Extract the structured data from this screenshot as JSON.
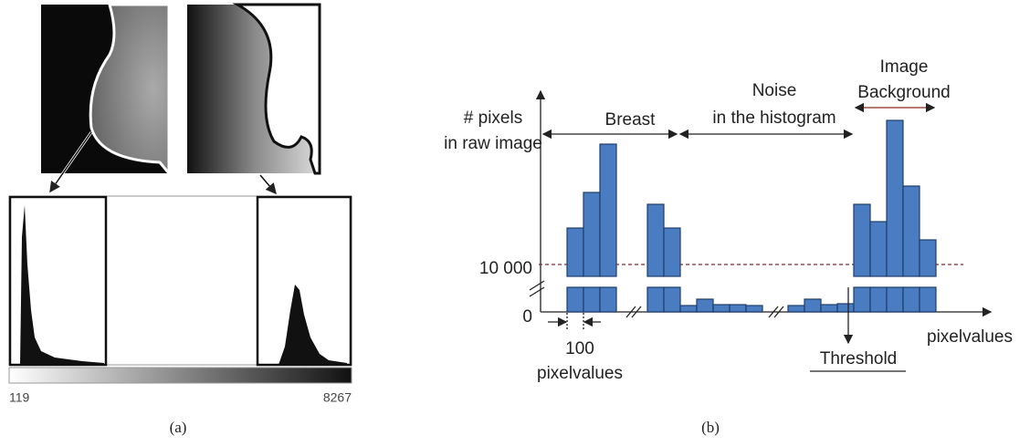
{
  "panel_a": {
    "caption": "(a)",
    "scale_min": "119",
    "scale_max": "8267"
  },
  "panel_b": {
    "caption": "(b)",
    "y_axis_label": [
      "# pixels",
      "in raw image"
    ],
    "breast_label": "Breast",
    "noise_label": [
      "Noise",
      "in the histogram"
    ],
    "background_label": [
      "Image",
      "Background"
    ],
    "y_tick_high": "10 000",
    "y_tick_zero": "0",
    "bin_width_label": [
      "100",
      "pixelvalues"
    ],
    "threshold_label": "Threshold",
    "x_axis_label": "pixelvalues"
  }
}
